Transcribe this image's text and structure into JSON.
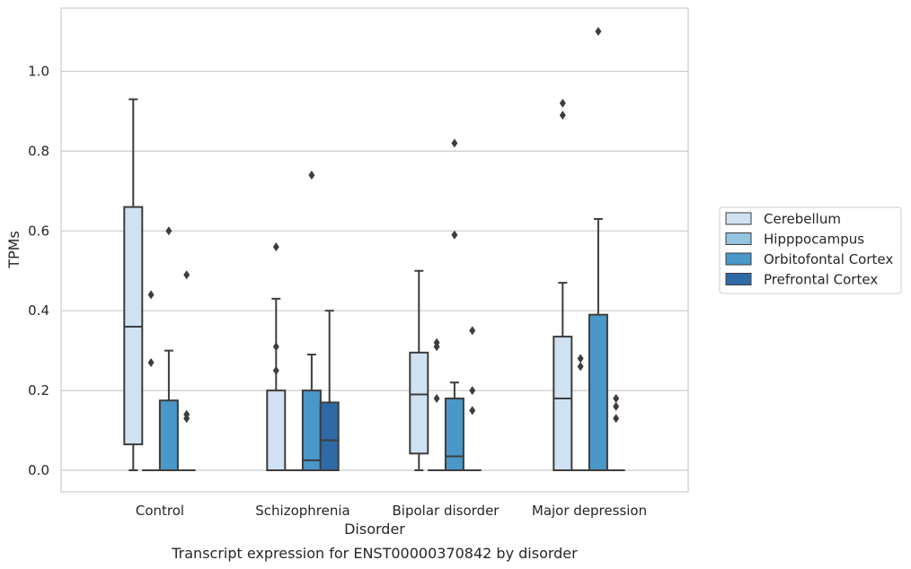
{
  "chart_data": {
    "type": "box",
    "title": "",
    "caption": "Transcript expression for ENST00000370842 by disorder",
    "xlabel": "Disorder",
    "ylabel": "TPMs",
    "ylim": [
      -0.05,
      1.16
    ],
    "yticks": [
      "0.0",
      "0.2",
      "0.4",
      "0.6",
      "0.8",
      "1.0"
    ],
    "grid": "horizontal",
    "legend_position": "right",
    "categories": [
      "Control",
      "Schizophrenia",
      "Bipolar disorder",
      "Major depression"
    ],
    "series": [
      {
        "name": "Cerebellum",
        "color": "#d0e1f2",
        "boxes": [
          {
            "whisker_low": 0.0,
            "q1": 0.065,
            "median": 0.36,
            "q3": 0.66,
            "whisker_high": 0.93,
            "outliers": []
          },
          {
            "whisker_low": 0.0,
            "q1": 0.0,
            "median": 0.0,
            "q3": 0.2,
            "whisker_high": 0.43,
            "outliers": [
              0.56,
              0.31,
              0.25
            ]
          },
          {
            "whisker_low": 0.0,
            "q1": 0.042,
            "median": 0.19,
            "q3": 0.295,
            "whisker_high": 0.5,
            "outliers": []
          },
          {
            "whisker_low": 0.0,
            "q1": 0.0,
            "median": 0.18,
            "q3": 0.335,
            "whisker_high": 0.47,
            "outliers": [
              0.92,
              0.89
            ]
          }
        ]
      },
      {
        "name": "Hipppocampus",
        "color": "#94c4df",
        "boxes": [
          {
            "whisker_low": 0.0,
            "q1": 0.0,
            "median": 0.0,
            "q3": 0.0,
            "whisker_high": 0.0,
            "outliers": [
              0.44,
              0.27
            ]
          },
          {
            "whisker_low": 0.0,
            "q1": 0.0,
            "median": 0.0,
            "q3": 0.0,
            "whisker_high": 0.0,
            "outliers": []
          },
          {
            "whisker_low": 0.0,
            "q1": 0.0,
            "median": 0.0,
            "q3": 0.0,
            "whisker_high": 0.0,
            "outliers": [
              0.32,
              0.31,
              0.18
            ]
          },
          {
            "whisker_low": 0.0,
            "q1": 0.0,
            "median": 0.0,
            "q3": 0.0,
            "whisker_high": 0.0,
            "outliers": [
              0.28,
              0.26
            ]
          }
        ]
      },
      {
        "name": "Orbitofontal Cortex",
        "color": "#4a98c9",
        "boxes": [
          {
            "whisker_low": 0.0,
            "q1": 0.0,
            "median": 0.0,
            "q3": 0.175,
            "whisker_high": 0.3,
            "outliers": [
              0.6
            ]
          },
          {
            "whisker_low": 0.0,
            "q1": 0.0,
            "median": 0.025,
            "q3": 0.2,
            "whisker_high": 0.29,
            "outliers": [
              0.74
            ]
          },
          {
            "whisker_low": 0.0,
            "q1": 0.0,
            "median": 0.035,
            "q3": 0.18,
            "whisker_high": 0.22,
            "outliers": [
              0.82,
              0.59
            ]
          },
          {
            "whisker_low": 0.0,
            "q1": 0.0,
            "median": 0.0,
            "q3": 0.39,
            "whisker_high": 0.63,
            "outliers": [
              1.1
            ]
          }
        ]
      },
      {
        "name": "Prefrontal Cortex",
        "color": "#2e6aa6",
        "boxes": [
          {
            "whisker_low": 0.0,
            "q1": 0.0,
            "median": 0.0,
            "q3": 0.0,
            "whisker_high": 0.0,
            "outliers": [
              0.49,
              0.14,
              0.13
            ]
          },
          {
            "whisker_low": 0.0,
            "q1": 0.0,
            "median": 0.075,
            "q3": 0.17,
            "whisker_high": 0.4,
            "outliers": []
          },
          {
            "whisker_low": 0.0,
            "q1": 0.0,
            "median": 0.0,
            "q3": 0.0,
            "whisker_high": 0.0,
            "outliers": [
              0.35,
              0.2,
              0.15
            ]
          },
          {
            "whisker_low": 0.0,
            "q1": 0.0,
            "median": 0.0,
            "q3": 0.0,
            "whisker_high": 0.0,
            "outliers": [
              0.18,
              0.16,
              0.13
            ]
          }
        ]
      }
    ],
    "colors": {
      "line": "#3d3d3d",
      "grid": "#cccccc",
      "frame": "#cccccc"
    }
  }
}
